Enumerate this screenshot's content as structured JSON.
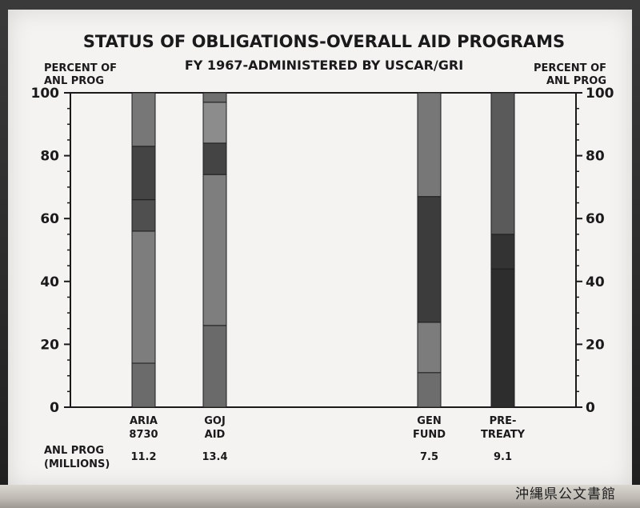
{
  "chart_data": {
    "type": "stacked_bar",
    "title": "STATUS OF OBLIGATIONS-OVERALL AID PROGRAMS",
    "subtitle": "FY 1967-ADMINISTERED BY USCAR/GRI",
    "left_axis_label": [
      "PERCENT OF",
      "ANL PROG"
    ],
    "right_axis_label": [
      "PERCENT OF",
      "ANL PROG"
    ],
    "ylim": [
      0,
      100
    ],
    "y_ticks": [
      0,
      20,
      40,
      60,
      80,
      100
    ],
    "grid": false,
    "categories": [
      {
        "label": [
          "ARIA",
          "8730"
        ],
        "anl_prog": "11.2"
      },
      {
        "label": [
          "GOJ",
          "AID"
        ],
        "anl_prog": "13.4"
      },
      {
        "label": [
          "GEN",
          "FUND"
        ],
        "anl_prog": "7.5"
      },
      {
        "label": [
          "PRE-",
          "TREATY"
        ],
        "anl_prog": "9.1"
      }
    ],
    "segment_colors": [
      "#6e6e6e",
      "#8a8a8a",
      "#4a4a4a",
      "#5c5c5c",
      "#7b7b7b",
      "#3a3a3a",
      "#2b2b2b"
    ],
    "bars": [
      {
        "segments": [
          {
            "from": 0,
            "to": 14,
            "shade": "#6b6b6b"
          },
          {
            "from": 14,
            "to": 56,
            "shade": "#7d7d7d"
          },
          {
            "from": 56,
            "to": 66,
            "shade": "#4f4f4f"
          },
          {
            "from": 66,
            "to": 83,
            "shade": "#444444"
          },
          {
            "from": 83,
            "to": 100,
            "shade": "#777777"
          }
        ]
      },
      {
        "segments": [
          {
            "from": 0,
            "to": 26,
            "shade": "#6a6a6a"
          },
          {
            "from": 26,
            "to": 74,
            "shade": "#7e7e7e"
          },
          {
            "from": 74,
            "to": 84,
            "shade": "#444444"
          },
          {
            "from": 84,
            "to": 97,
            "shade": "#8c8c8c"
          },
          {
            "from": 97,
            "to": 100,
            "shade": "#6f6f6f"
          }
        ]
      },
      {
        "segments": [
          {
            "from": 0,
            "to": 11,
            "shade": "#6d6d6d"
          },
          {
            "from": 11,
            "to": 27,
            "shade": "#7c7c7c"
          },
          {
            "from": 27,
            "to": 67,
            "shade": "#3c3c3c"
          },
          {
            "from": 67,
            "to": 100,
            "shade": "#777777"
          }
        ]
      },
      {
        "segments": [
          {
            "from": 0,
            "to": 44,
            "shade": "#2d2d2d"
          },
          {
            "from": 44,
            "to": 55,
            "shade": "#333333"
          },
          {
            "from": 55,
            "to": 100,
            "shade": "#5a5a5a"
          }
        ]
      }
    ],
    "footer_label": [
      "ANL PROG",
      "(MILLIONS)"
    ]
  },
  "stamp": "沖縄県公文書館"
}
